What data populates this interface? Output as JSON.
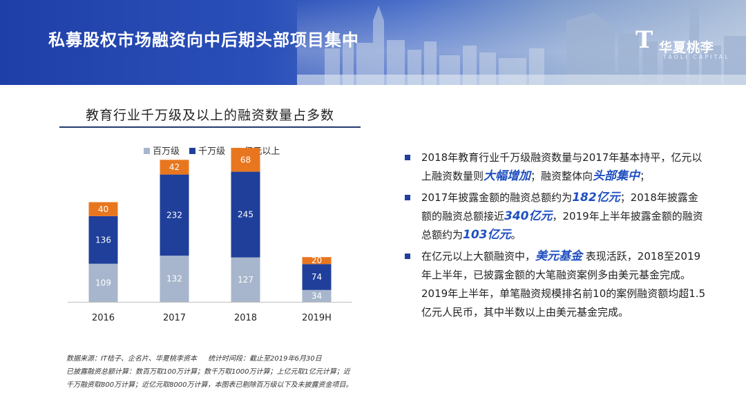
{
  "header": {
    "title": "私募股权市场融资向中后期头部项目集中",
    "logo_mark": "T",
    "logo_name": "华夏桃李",
    "logo_sub": "TAOLI CAPITAL"
  },
  "colors": {
    "header_blue": "#1f3fa8",
    "million": "#a7b6cc",
    "ten_million": "#1f3f9a",
    "hundred_million": "#e8761f",
    "highlight": "#1f4fc0"
  },
  "chart_data": {
    "type": "bar",
    "stacked": true,
    "title": "教育行业千万级及以上的融资数量占多数",
    "categories": [
      "2016",
      "2017",
      "2018",
      "2019H"
    ],
    "series": [
      {
        "name": "百万级",
        "color": "#a7b6cc",
        "values": [
          109,
          132,
          127,
          34
        ]
      },
      {
        "name": "千万级",
        "color": "#1f3f9a",
        "values": [
          136,
          232,
          245,
          74
        ]
      },
      {
        "name": "亿元以上",
        "color": "#e8761f",
        "values": [
          40,
          42,
          68,
          20
        ]
      }
    ],
    "legend_position": "top",
    "grid": false,
    "ylim": [
      0,
      460
    ]
  },
  "source": {
    "line1": "数据来源：IT桔子、企名片、华夏桃李资本",
    "line1b": "统计时间段：截止至2019年6月30日",
    "line2": "已披露融资总额计算：数百万取100万计算；数千万取1000万计算；上亿元取1亿元计算；近",
    "line3": "千万融资取800万计算；近亿元取8000万计算，本图表已剔除百万级以下及未披露资金项目。"
  },
  "bullets": [
    {
      "p1": "2018年教育行业千万级融资数量与2017年基本持平，亿元以上融资数量则",
      "h1": "大幅增加",
      "p2": "；融资整体向",
      "h2": "头部集中",
      "p3": "；"
    },
    {
      "p1": "2017年披露金额的融资总额约为",
      "h1": "182亿元",
      "p2": "；2018年披露金额的融资总额接近",
      "h2": "340亿元",
      "p3": "，2019年上半年披露金额的融资总额约为",
      "h3": "103亿元",
      "p4": "。"
    },
    {
      "p1": "在亿元以上大额融资中，",
      "h1": "美元基金",
      "p2": " 表现活跃，2018至2019年上半年，已披露金额的大笔融资案例多由美元基金完成。2019年上半年，单笔融资规模排名前10的案例融资额均超1.5亿元人民币，其中半数以上由美元基金完成。"
    }
  ]
}
